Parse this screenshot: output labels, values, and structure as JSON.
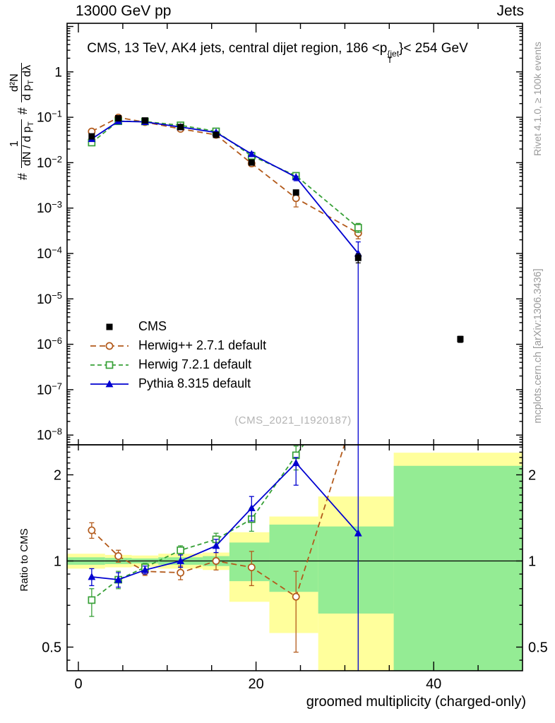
{
  "header": {
    "left": "13000 GeV pp",
    "right": "Jets"
  },
  "panel_title": {
    "pre": "CMS, 13 TeV, AK4 jets, central dijet region, 186 <p",
    "sup": "{jet",
    "sub": "T",
    "post": "}< 254 GeV"
  },
  "ylabel": {
    "hash1": "#",
    "f1_num": "1",
    "f1_den_pre": "dN / d p",
    "f1_den_sub": "T",
    "hash2": "#",
    "f2_num": "d²N",
    "f2_den_pre": "d p",
    "f2_den_sub": "T",
    "f2_den_post": " dλ"
  },
  "ratio_ylabel": "Ratio to CMS",
  "xlabel": "groomed multiplicity (charged-only)",
  "watermark": "(CMS_2021_I1920187)",
  "side_notes": {
    "top": "Rivet 4.1.0, ≥ 100k events",
    "bottom": "mcplots.cern.ch [arXiv:1306.3436]"
  },
  "legend": {
    "items": [
      {
        "series": "cms",
        "label": "CMS"
      },
      {
        "series": "herwigpp",
        "label": "Herwig++ 2.7.1 default"
      },
      {
        "series": "herwig7",
        "label": "Herwig 7.2.1 default"
      },
      {
        "series": "pythia",
        "label": "Pythia 8.315 default"
      }
    ]
  },
  "colors": {
    "cms": "#000000",
    "herwigpp": "#b35a1b",
    "herwig7": "#37a037",
    "pythia": "#0000d0",
    "band_yellow": "#ffff9c",
    "band_green": "#94ec94",
    "frame": "#000000",
    "watermark": "#b4b4b4",
    "side_note": "#9a9a9a"
  },
  "chart_data": [
    {
      "type": "line",
      "name": "main-spectrum",
      "xlim": [
        -1.3,
        50.0
      ],
      "ylim": [
        6.1e-09,
        11.7
      ],
      "ylog": true,
      "bin_edges": [
        0,
        3,
        6,
        9,
        14,
        17,
        22,
        27,
        36,
        50
      ],
      "xticks": [
        {
          "label": "0",
          "value": 0
        },
        {
          "label": "20",
          "value": 20
        },
        {
          "label": "40",
          "value": 40
        }
      ],
      "yticks": [
        {
          "label": "1",
          "value": 1
        },
        {
          "base": "10",
          "exp": "−1",
          "value": 0.1
        },
        {
          "base": "10",
          "exp": "−2",
          "value": 0.01
        },
        {
          "base": "10",
          "exp": "−3",
          "value": 0.001
        },
        {
          "base": "10",
          "exp": "−4",
          "value": 0.0001
        },
        {
          "base": "10",
          "exp": "−5",
          "value": 1e-05
        },
        {
          "base": "10",
          "exp": "−6",
          "value": 1e-06
        },
        {
          "base": "10",
          "exp": "−7",
          "value": 1e-07
        },
        {
          "base": "10",
          "exp": "−8",
          "value": 1e-08
        }
      ],
      "series": [
        {
          "id": "cms",
          "name": "CMS",
          "marker": "filled-square",
          "line": "none",
          "points": [
            [
              1.5,
              0.038,
              0.0365,
              0.0396
            ],
            [
              4.5,
              0.095,
              0.0922,
              0.0978
            ],
            [
              7.5,
              0.085,
              0.0825,
              0.0875
            ],
            [
              11.5,
              0.061,
              0.0592,
              0.0628
            ],
            [
              15.5,
              0.041,
              0.0394,
              0.0426
            ],
            [
              19.5,
              0.0101,
              0.0096,
              0.0106
            ],
            [
              24.5,
              0.0022,
              0.00205,
              0.00235
            ],
            [
              31.5,
              8e-05,
              6.2e-05,
              9.8e-05
            ],
            [
              43,
              1.3e-06,
              1.1e-06,
              1.5e-06
            ]
          ]
        },
        {
          "id": "herwigpp",
          "name": "Herwig++ 2.7.1 default",
          "marker": "open-circle",
          "line": "dashed",
          "points": [
            [
              1.5,
              0.0486,
              0.0455,
              0.0517
            ],
            [
              4.5,
              0.0988,
              0.094,
              0.1036
            ],
            [
              7.5,
              0.0782,
              0.0759,
              0.0805
            ],
            [
              11.5,
              0.0555,
              0.0525,
              0.0585
            ],
            [
              15.5,
              0.041,
              0.0381,
              0.0439
            ],
            [
              19.5,
              0.0096,
              0.0083,
              0.0109
            ],
            [
              24.5,
              0.00165,
              0.00106,
              0.00202
            ],
            [
              31.5,
              0.00028,
              0.00021,
              0.00042
            ]
          ]
        },
        {
          "id": "herwig7",
          "name": "Herwig 7.2.1 default",
          "marker": "open-square",
          "line": "dashed",
          "points": [
            [
              1.5,
              0.0277,
              0.0243,
              0.0304
            ],
            [
              4.5,
              0.0817,
              0.076,
              0.0874
            ],
            [
              7.5,
              0.0808,
              0.0782,
              0.0834
            ],
            [
              11.5,
              0.0665,
              0.0641,
              0.0689
            ],
            [
              15.5,
              0.049,
              0.0465,
              0.0515
            ],
            [
              19.5,
              0.0141,
              0.0128,
              0.0154
            ],
            [
              24.5,
              0.00515,
              0.00458,
              0.00554
            ],
            [
              31.5,
              0.00037,
              0.00029,
              0.00046
            ]
          ]
        },
        {
          "id": "pythia",
          "name": "Pythia 8.315 default",
          "marker": "filled-triangle",
          "line": "solid",
          "points": [
            [
              1.5,
              0.0334,
              0.0311,
              0.0357
            ],
            [
              4.5,
              0.0817,
              0.077,
              0.0864
            ],
            [
              7.5,
              0.0791,
              0.0767,
              0.0815
            ],
            [
              11.5,
              0.061,
              0.058,
              0.064
            ],
            [
              15.5,
              0.0463,
              0.0438,
              0.0488
            ],
            [
              19.5,
              0.0155,
              0.014,
              0.017
            ],
            [
              24.5,
              0.0048,
              0.004,
              0.005
            ],
            [
              31.5,
              0.0001,
              1e-09,
              0.00018
            ]
          ]
        }
      ]
    },
    {
      "type": "ratio",
      "name": "ratio-to-cms",
      "xlim": [
        -1.3,
        50.0
      ],
      "ylim": [
        0.41,
        2.55
      ],
      "ylog": true,
      "yticks": [
        {
          "label": "2",
          "value": 2
        },
        {
          "label": "1",
          "value": 1
        },
        {
          "label": "0.5",
          "value": 0.5
        }
      ],
      "bands": [
        {
          "xlo": -1.3,
          "xhi": 3,
          "yellow": [
            0.94,
            1.06
          ],
          "green": [
            0.97,
            1.03
          ]
        },
        {
          "xlo": 3,
          "xhi": 6,
          "yellow": [
            0.95,
            1.05
          ],
          "green": [
            0.975,
            1.025
          ]
        },
        {
          "xlo": 6,
          "xhi": 9,
          "yellow": [
            0.955,
            1.045
          ],
          "green": [
            0.98,
            1.02
          ]
        },
        {
          "xlo": 9,
          "xhi": 14,
          "yellow": [
            0.94,
            1.06
          ],
          "green": [
            0.97,
            1.03
          ]
        },
        {
          "xlo": 14,
          "xhi": 17,
          "yellow": [
            0.93,
            1.07
          ],
          "green": [
            0.96,
            1.04
          ]
        },
        {
          "xlo": 17,
          "xhi": 21.5,
          "yellow": [
            0.72,
            1.26
          ],
          "green": [
            0.85,
            1.16
          ]
        },
        {
          "xlo": 21.5,
          "xhi": 27,
          "yellow": [
            0.56,
            1.43
          ],
          "green": [
            0.78,
            1.34
          ]
        },
        {
          "xlo": 27,
          "xhi": 35.5,
          "yellow": [
            0.4,
            1.68
          ],
          "green": [
            0.655,
            1.32
          ]
        },
        {
          "xlo": 35.5,
          "xhi": 50,
          "yellow": [
            0.4,
            2.39
          ],
          "green": [
            0.4,
            2.15
          ]
        }
      ],
      "series": [
        {
          "id": "herwigpp",
          "points": [
            [
              1.5,
              1.28,
              1.2,
              1.36
            ],
            [
              4.5,
              1.04,
              0.99,
              1.09
            ],
            [
              7.5,
              0.92,
              0.89,
              0.95
            ],
            [
              11.5,
              0.91,
              0.86,
              0.96
            ],
            [
              15.5,
              1.0,
              0.93,
              1.07
            ],
            [
              19.5,
              0.95,
              0.82,
              1.08
            ],
            [
              24.5,
              0.75,
              0.48,
              0.92
            ]
          ],
          "line_exit": [
            31.5,
            3.6
          ]
        },
        {
          "id": "herwig7",
          "points": [
            [
              1.5,
              0.73,
              0.64,
              0.8
            ],
            [
              4.5,
              0.86,
              0.8,
              0.92
            ],
            [
              7.5,
              0.95,
              0.92,
              0.98
            ],
            [
              11.5,
              1.09,
              1.05,
              1.13
            ],
            [
              15.5,
              1.19,
              1.13,
              1.25
            ],
            [
              19.5,
              1.4,
              1.27,
              1.53
            ],
            [
              24.5,
              2.34,
              2.08,
              2.52
            ]
          ],
          "line_exit": [
            31.5,
            4.7
          ]
        },
        {
          "id": "pythia",
          "points": [
            [
              1.5,
              0.88,
              0.82,
              0.94
            ],
            [
              4.5,
              0.86,
              0.81,
              0.91
            ],
            [
              7.5,
              0.93,
              0.9,
              0.96
            ],
            [
              11.5,
              1.0,
              0.95,
              1.05
            ],
            [
              15.5,
              1.13,
              1.07,
              1.19
            ],
            [
              19.5,
              1.53,
              1.38,
              1.68
            ],
            [
              24.5,
              2.2,
              1.84,
              2.3
            ],
            [
              31.5,
              1.25,
              0.01,
              100
            ]
          ]
        }
      ]
    }
  ]
}
